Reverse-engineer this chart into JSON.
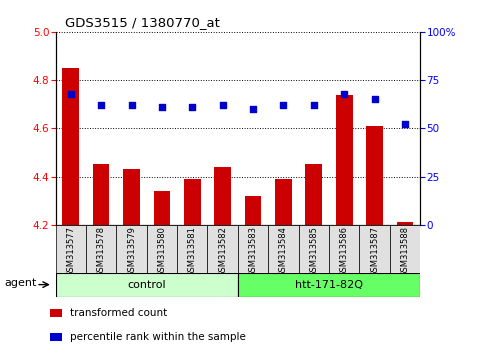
{
  "title": "GDS3515 / 1380770_at",
  "samples": [
    "GSM313577",
    "GSM313578",
    "GSM313579",
    "GSM313580",
    "GSM313581",
    "GSM313582",
    "GSM313583",
    "GSM313584",
    "GSM313585",
    "GSM313586",
    "GSM313587",
    "GSM313588"
  ],
  "bar_values": [
    4.85,
    4.45,
    4.43,
    4.34,
    4.39,
    4.44,
    4.32,
    4.39,
    4.45,
    4.74,
    4.61,
    4.21
  ],
  "dot_values": [
    68,
    62,
    62,
    61,
    61,
    62,
    60,
    62,
    62,
    68,
    65,
    52
  ],
  "ylim_left": [
    4.2,
    5.0
  ],
  "ylim_right": [
    0,
    100
  ],
  "yticks_left": [
    4.2,
    4.4,
    4.6,
    4.8,
    5.0
  ],
  "yticks_right": [
    0,
    25,
    50,
    75,
    100
  ],
  "yticklabels_right": [
    "0",
    "25",
    "50",
    "75",
    "100%"
  ],
  "bar_color": "#cc0000",
  "dot_color": "#0000cc",
  "bar_bottom": 4.2,
  "groups": [
    {
      "label": "control",
      "start": 0,
      "end": 6,
      "color": "#ccffcc"
    },
    {
      "label": "htt-171-82Q",
      "start": 6,
      "end": 12,
      "color": "#66ff66"
    }
  ],
  "agent_label": "agent",
  "legend_items": [
    {
      "color": "#cc0000",
      "label": "transformed count"
    },
    {
      "color": "#0000cc",
      "label": "percentile rank within the sample"
    }
  ],
  "grid_color": "black",
  "xtick_bg": "#e0e0e0",
  "plot_bg": "white"
}
